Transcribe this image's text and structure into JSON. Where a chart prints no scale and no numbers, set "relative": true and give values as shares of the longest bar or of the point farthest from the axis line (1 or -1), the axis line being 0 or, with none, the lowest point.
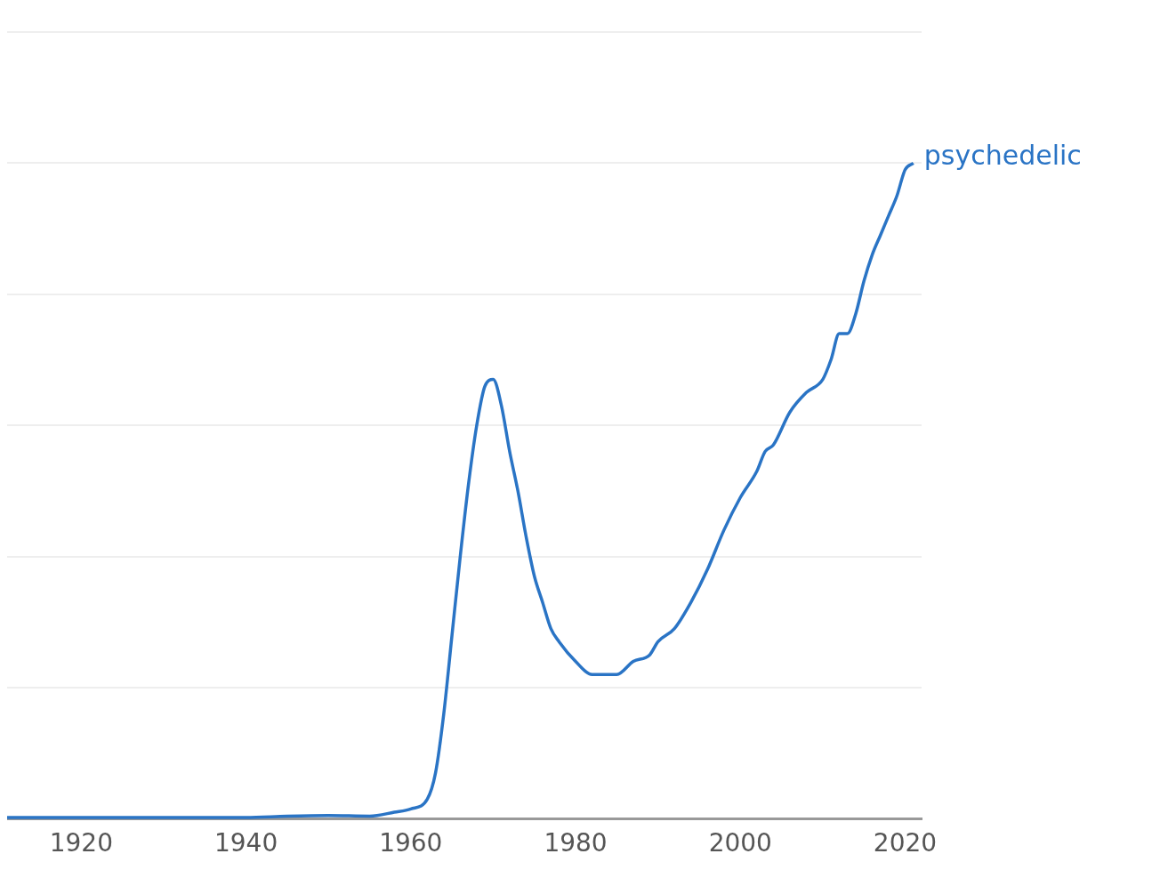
{
  "chart_data": {
    "type": "line",
    "relative": true,
    "x": [
      1911,
      1920,
      1930,
      1940,
      1945,
      1950,
      1955,
      1958,
      1960,
      1962,
      1963,
      1964,
      1965,
      1966,
      1967,
      1968,
      1969,
      1970,
      1971,
      1972,
      1973,
      1974,
      1975,
      1976,
      1977,
      1978,
      1980,
      1982,
      1983,
      1985,
      1987,
      1989,
      1990,
      1992,
      1994,
      1996,
      1998,
      2000,
      2002,
      2003,
      2004,
      2006,
      2008,
      2010,
      2011,
      2012,
      2013,
      2014,
      2015,
      2016,
      2017,
      2018,
      2019,
      2020,
      2021
    ],
    "series": [
      {
        "name": "psychedelic",
        "color": "#2a74c5",
        "values": [
          0.002,
          0.002,
          0.002,
          0.002,
          0.004,
          0.005,
          0.004,
          0.01,
          0.015,
          0.03,
          0.07,
          0.16,
          0.28,
          0.4,
          0.51,
          0.6,
          0.66,
          0.67,
          0.63,
          0.56,
          0.5,
          0.43,
          0.37,
          0.33,
          0.29,
          0.27,
          0.24,
          0.22,
          0.22,
          0.22,
          0.24,
          0.25,
          0.27,
          0.29,
          0.33,
          0.38,
          0.44,
          0.49,
          0.53,
          0.56,
          0.57,
          0.62,
          0.65,
          0.67,
          0.7,
          0.74,
          0.74,
          0.77,
          0.82,
          0.86,
          0.89,
          0.92,
          0.95,
          0.99,
          1
        ]
      }
    ],
    "xlim": [
      1911,
      2022
    ],
    "xticks": [
      1920,
      1940,
      1960,
      1980,
      2000,
      2020
    ],
    "grid": "y",
    "legend": false,
    "marker": "none"
  }
}
